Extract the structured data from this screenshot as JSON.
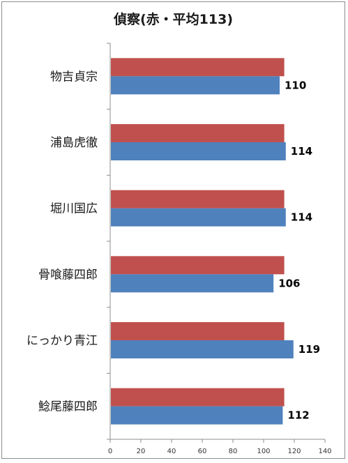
{
  "chart_data": {
    "type": "bar",
    "orientation": "horizontal",
    "title": "偵察(赤・平均113)",
    "categories": [
      "物吉貞宗",
      "浦島虎徹",
      "堀川国広",
      "骨喰藤四郎",
      "にっかり青江",
      "鯰尾藤四郎"
    ],
    "series": [
      {
        "values": [
          113,
          113,
          113,
          113,
          113,
          113
        ]
      },
      {
        "values": [
          110,
          114,
          114,
          106,
          119,
          112
        ]
      }
    ],
    "data_labels_series": 1,
    "xlim": [
      0,
      140
    ],
    "xticks": [
      0,
      20,
      40,
      60,
      80,
      100,
      120,
      140
    ],
    "xlabel": "",
    "ylabel": "",
    "grid": false,
    "legend": "none",
    "colors": {
      "average": "#c0504d",
      "value": "#4f81bd"
    }
  }
}
